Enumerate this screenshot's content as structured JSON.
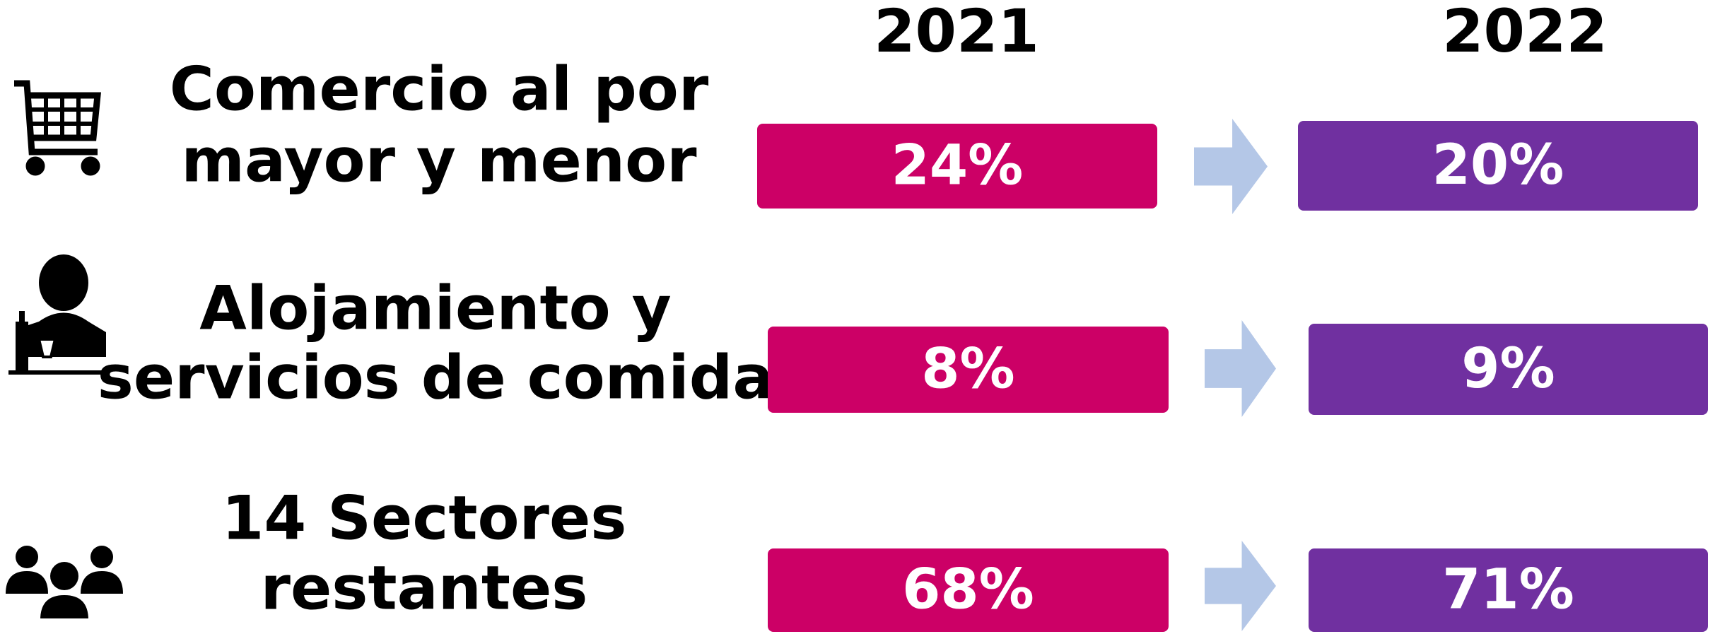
{
  "header": {
    "years": [
      "2021",
      "2022"
    ]
  },
  "rows": [
    {
      "label": [
        "Comercio al por",
        "mayor y menor"
      ],
      "value_2021": "24%",
      "value_2022": "20%"
    },
    {
      "label": [
        "Alojamiento y",
        "servicios de comida"
      ],
      "value_2021": "8%",
      "value_2022": "9%"
    },
    {
      "label": [
        "14 Sectores",
        "restantes"
      ],
      "value_2021": "68%",
      "value_2022": "71%"
    }
  ]
}
